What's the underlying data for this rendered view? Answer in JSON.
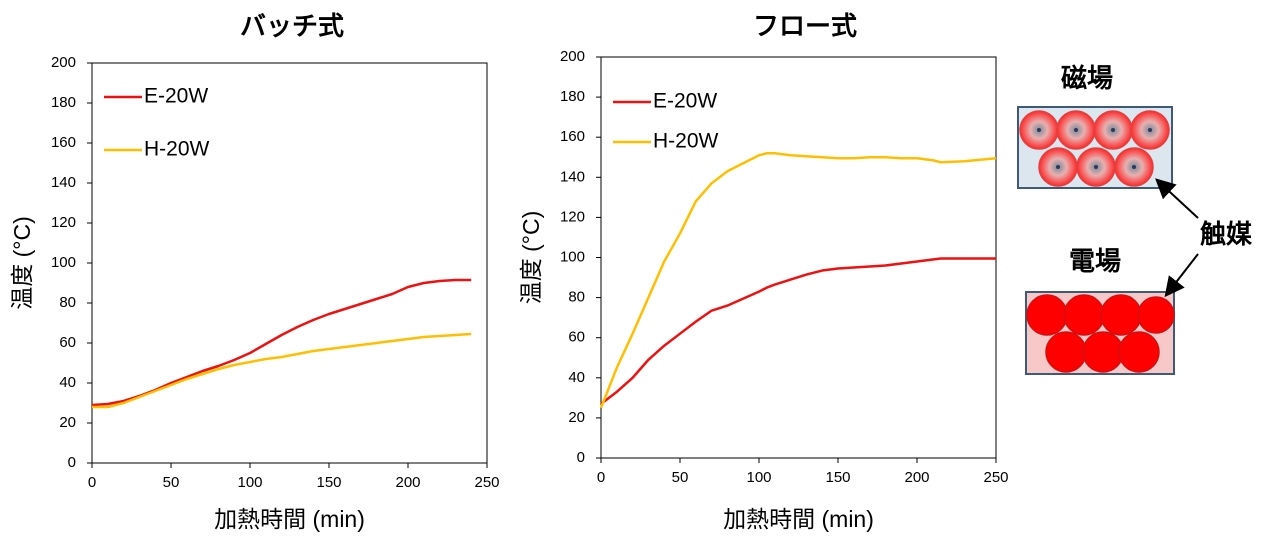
{
  "chart_data": [
    {
      "type": "line",
      "title": "バッチ式",
      "xlabel": "加熱時間 (min)",
      "ylabel": "温度 (°C)",
      "x": [
        0,
        10,
        20,
        30,
        40,
        50,
        60,
        70,
        80,
        90,
        100,
        110,
        120,
        130,
        140,
        150,
        160,
        170,
        180,
        190,
        200,
        210,
        220,
        230,
        240
      ],
      "series": [
        {
          "name": "E-20W",
          "color": "#ee1111",
          "values": [
            29,
            29.5,
            31,
            33.5,
            36.5,
            40,
            43,
            46,
            48.5,
            51.5,
            55,
            59.5,
            64,
            68,
            71.5,
            74.5,
            77,
            79.5,
            82,
            84.5,
            88,
            90,
            91,
            91.5,
            91.5
          ]
        },
        {
          "name": "H-20W",
          "color": "#ffbf00",
          "values": [
            28,
            28,
            30,
            33,
            36,
            39,
            42,
            44.5,
            47,
            49,
            50.5,
            52,
            53,
            54.5,
            56,
            57,
            58,
            59,
            60,
            61,
            62,
            63,
            63.5,
            64,
            64.5
          ]
        }
      ],
      "xlim": [
        0,
        250
      ],
      "xticks": [
        0,
        50,
        100,
        150,
        200,
        250
      ],
      "ylim": [
        0,
        200
      ],
      "yticks": [
        0,
        20,
        40,
        60,
        80,
        100,
        120,
        140,
        160,
        180,
        200
      ],
      "grid": false,
      "legend": "upper left"
    },
    {
      "type": "line",
      "title": "フロー式",
      "xlabel": "加熱時間 (min)",
      "ylabel": "温度 (°C)",
      "x": [
        0,
        10,
        20,
        30,
        40,
        50,
        60,
        70,
        80,
        90,
        100,
        105,
        110,
        120,
        130,
        140,
        150,
        160,
        170,
        180,
        190,
        200,
        210,
        215,
        230,
        250
      ],
      "series": [
        {
          "name": "E-20W",
          "color": "#ee1111",
          "values": [
            27,
            33,
            40,
            49,
            56,
            62,
            68,
            73.5,
            76,
            79.5,
            83,
            85,
            86.5,
            89,
            91.5,
            93.5,
            94.5,
            95,
            95.5,
            96,
            97,
            98,
            99,
            99.5,
            99.5,
            99.5
          ]
        },
        {
          "name": "H-20W",
          "color": "#ffbf00",
          "values": [
            25,
            45,
            62,
            80,
            98,
            112,
            128,
            137,
            143,
            147,
            151,
            152,
            152,
            151,
            150.5,
            150,
            149.5,
            149.5,
            150,
            150,
            149.5,
            149.5,
            148.5,
            147.5,
            148,
            149.5
          ]
        }
      ],
      "xlim": [
        0,
        250
      ],
      "xticks": [
        0,
        50,
        100,
        150,
        200,
        250
      ],
      "ylim": [
        0,
        200
      ],
      "yticks": [
        0,
        20,
        40,
        60,
        80,
        100,
        120,
        140,
        160,
        180,
        200
      ],
      "grid": false,
      "legend": "upper left"
    }
  ],
  "diagram": {
    "magnetic": "磁場",
    "electric": "電場",
    "catalyst": "触媒"
  }
}
